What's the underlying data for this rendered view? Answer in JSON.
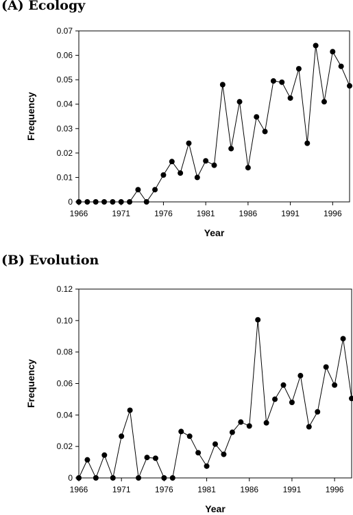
{
  "chart_data": [
    {
      "type": "line",
      "title": "(A) Ecology",
      "xlabel": "Year",
      "ylabel": "Frequency",
      "xlim": [
        1966,
        1998
      ],
      "ylim": [
        0,
        0.07
      ],
      "xticks": [
        1966,
        1971,
        1976,
        1981,
        1986,
        1991,
        1996
      ],
      "xtick_labels": [
        "1966",
        "1971",
        "1976",
        "1981",
        "1986",
        "1991",
        "1996"
      ],
      "yticks": [
        0,
        0.01,
        0.02,
        0.03,
        0.04,
        0.05,
        0.06,
        0.07
      ],
      "ytick_labels": [
        "0",
        "0.01",
        "0.02",
        "0.03",
        "0.04",
        "0.05",
        "0.06",
        "0.07"
      ],
      "grid": false,
      "series": [
        {
          "x": [
            1966,
            1967,
            1968,
            1969,
            1970,
            1971,
            1972,
            1973,
            1974,
            1975,
            1976,
            1977,
            1978,
            1979,
            1980,
            1981,
            1982,
            1983,
            1984,
            1985,
            1986,
            1987,
            1988,
            1989,
            1990,
            1991,
            1992,
            1993,
            1994,
            1995,
            1996,
            1997,
            1998
          ],
          "y": [
            0,
            0,
            0,
            0,
            0,
            0,
            0,
            0.005,
            0,
            0.005,
            0.011,
            0.0165,
            0.0118,
            0.024,
            0.01,
            0.0168,
            0.015,
            0.048,
            0.0218,
            0.041,
            0.014,
            0.0348,
            0.0288,
            0.0495,
            0.049,
            0.0425,
            0.0545,
            0.024,
            0.064,
            0.041,
            0.0615,
            0.0555,
            0.0475
          ]
        }
      ]
    },
    {
      "type": "line",
      "title": "(B) Evolution",
      "xlabel": "Year",
      "ylabel": "Frequency",
      "xlim": [
        1966,
        1998
      ],
      "ylim": [
        0,
        0.12
      ],
      "xticks": [
        1966,
        1971,
        1976,
        1981,
        1986,
        1991,
        1996
      ],
      "xtick_labels": [
        "1966",
        "1971",
        "1976",
        "1981",
        "1986",
        "1991",
        "1996"
      ],
      "yticks": [
        0,
        0.02,
        0.04,
        0.06,
        0.08,
        0.1,
        0.12
      ],
      "ytick_labels": [
        "0",
        "0.02",
        "0.04",
        "0.06",
        "0.08",
        "0.10",
        "0.12"
      ],
      "grid": false,
      "series": [
        {
          "x": [
            1966,
            1967,
            1968,
            1969,
            1970,
            1971,
            1972,
            1973,
            1974,
            1975,
            1976,
            1977,
            1978,
            1979,
            1980,
            1981,
            1982,
            1983,
            1984,
            1985,
            1986,
            1987,
            1988,
            1989,
            1990,
            1991,
            1992,
            1993,
            1994,
            1995,
            1996,
            1997,
            1998
          ],
          "y": [
            0,
            0.0115,
            0,
            0.0145,
            0,
            0.0265,
            0.043,
            0,
            0.013,
            0.0125,
            0,
            0,
            0.0295,
            0.0265,
            0.016,
            0.0075,
            0.0215,
            0.015,
            0.029,
            0.0355,
            0.033,
            0.1005,
            0.035,
            0.05,
            0.059,
            0.048,
            0.065,
            0.0325,
            0.042,
            0.0705,
            0.059,
            0.0885,
            0.0505
          ]
        }
      ]
    }
  ]
}
